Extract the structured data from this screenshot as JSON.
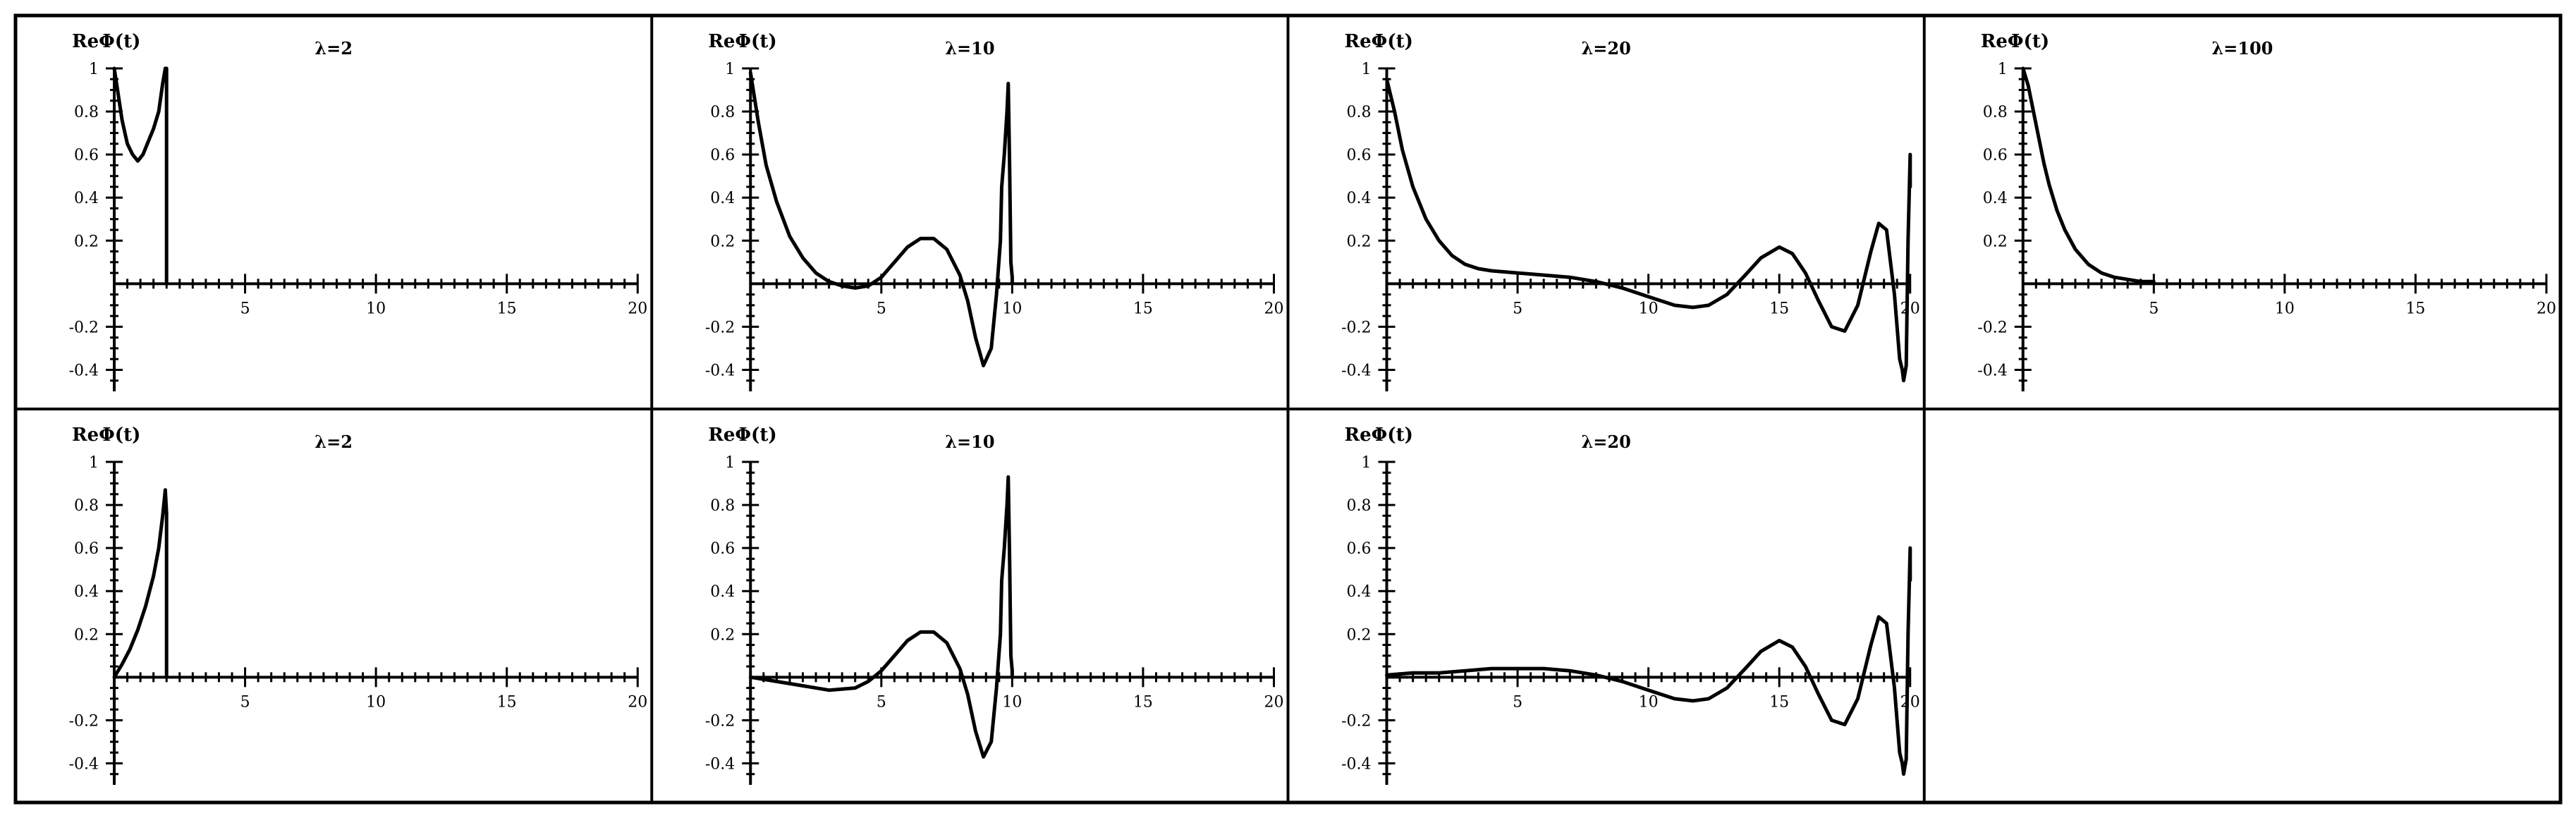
{
  "figure": {
    "grid_rows": 2,
    "grid_cols": 4,
    "line_color": "#000000",
    "background": "#ffffff"
  },
  "chart_data": [
    {
      "type": "line",
      "title": "λ=2",
      "ylabel": "ReΦ(t)",
      "xlim": [
        0,
        20
      ],
      "ylim": [
        -0.5,
        1
      ],
      "x_ticks": [
        5,
        10,
        15,
        20
      ],
      "x_tick_labels": [
        "5",
        "10",
        "15",
        "20"
      ],
      "y_ticks": [
        -0.4,
        -0.2,
        0.2,
        0.4,
        0.6,
        0.8,
        1
      ],
      "y_tick_labels": [
        "-0.4",
        "-0.2",
        "0.2",
        "0.4",
        "0.6",
        "0.8",
        "1"
      ],
      "grid": false,
      "series": [
        {
          "x": [
            0,
            0.15,
            0.3,
            0.5,
            0.7,
            0.9,
            1.1,
            1.3,
            1.5,
            1.7,
            1.85,
            1.95,
            2.0,
            2.0
          ],
          "y": [
            1,
            0.88,
            0.76,
            0.65,
            0.6,
            0.57,
            0.6,
            0.66,
            0.72,
            0.8,
            0.93,
            1.0,
            1.0,
            0
          ]
        }
      ]
    },
    {
      "type": "line",
      "title": "λ=10",
      "ylabel": "ReΦ(t)",
      "xlim": [
        0,
        20
      ],
      "ylim": [
        -0.5,
        1
      ],
      "x_ticks": [
        5,
        10,
        15,
        20
      ],
      "x_tick_labels": [
        "5",
        "10",
        "15",
        "20"
      ],
      "y_ticks": [
        -0.4,
        -0.2,
        0.2,
        0.4,
        0.6,
        0.8,
        1
      ],
      "y_tick_labels": [
        "-0.4",
        "-0.2",
        "0.2",
        "0.4",
        "0.6",
        "0.8",
        "1"
      ],
      "grid": false,
      "series": [
        {
          "x": [
            0,
            0.3,
            0.6,
            1.0,
            1.5,
            2.0,
            2.5,
            3.0,
            3.5,
            4.0,
            4.5,
            5.0,
            5.5,
            6.0,
            6.5,
            7.0,
            7.5,
            8.0,
            8.3,
            8.6,
            8.9,
            9.2,
            9.4,
            9.55,
            9.6,
            9.7,
            9.8,
            9.85,
            9.9,
            9.95,
            10.0,
            10.0
          ],
          "y": [
            0.98,
            0.75,
            0.55,
            0.38,
            0.22,
            0.12,
            0.05,
            0.01,
            -0.01,
            -0.02,
            -0.01,
            0.03,
            0.1,
            0.17,
            0.21,
            0.21,
            0.16,
            0.04,
            -0.08,
            -0.25,
            -0.38,
            -0.3,
            -0.05,
            0.2,
            0.45,
            0.6,
            0.8,
            0.93,
            0.55,
            0.1,
            0.03,
            0
          ]
        }
      ]
    },
    {
      "type": "line",
      "title": "λ=20",
      "ylabel": "ReΦ(t)",
      "xlim": [
        0,
        20
      ],
      "ylim": [
        -0.5,
        1
      ],
      "x_ticks": [
        5,
        10,
        15,
        20
      ],
      "x_tick_labels": [
        "5",
        "10",
        "15",
        "20"
      ],
      "y_ticks": [
        -0.4,
        -0.2,
        0.2,
        0.4,
        0.6,
        0.8,
        1
      ],
      "y_tick_labels": [
        "-0.4",
        "-0.2",
        "0.2",
        "0.4",
        "0.6",
        "0.8",
        "1"
      ],
      "grid": false,
      "series": [
        {
          "x": [
            0,
            0.3,
            0.6,
            1.0,
            1.5,
            2.0,
            2.5,
            3.0,
            3.5,
            4.0,
            5.0,
            6.0,
            7.0,
            8.0,
            9.0,
            10.0,
            11.0,
            11.7,
            12.3,
            13.0,
            13.7,
            14.3,
            15.0,
            15.5,
            16.0,
            16.5,
            17.0,
            17.5,
            18.0,
            18.5,
            18.8,
            19.1,
            19.4,
            19.6,
            19.7,
            19.75,
            19.85,
            19.92,
            20.0,
            20.0
          ],
          "y": [
            0.95,
            0.8,
            0.62,
            0.45,
            0.3,
            0.2,
            0.13,
            0.09,
            0.07,
            0.06,
            0.05,
            0.04,
            0.03,
            0.01,
            -0.02,
            -0.06,
            -0.1,
            -0.11,
            -0.1,
            -0.05,
            0.04,
            0.12,
            0.17,
            0.14,
            0.05,
            -0.08,
            -0.2,
            -0.22,
            -0.1,
            0.15,
            0.28,
            0.25,
            -0.05,
            -0.35,
            -0.4,
            -0.45,
            -0.38,
            0.2,
            0.6,
            0.45
          ]
        }
      ]
    },
    {
      "type": "line",
      "title": "λ=100",
      "ylabel": "ReΦ(t)",
      "xlim": [
        0,
        20
      ],
      "ylim": [
        -0.5,
        1
      ],
      "x_ticks": [
        5,
        10,
        15,
        20
      ],
      "x_tick_labels": [
        "5",
        "10",
        "15",
        "20"
      ],
      "y_ticks": [
        -0.4,
        -0.2,
        0.2,
        0.4,
        0.6,
        0.8,
        1
      ],
      "y_tick_labels": [
        "-0.4",
        "-0.2",
        "0.2",
        "0.4",
        "0.6",
        "0.8",
        "1"
      ],
      "grid": false,
      "series": [
        {
          "x": [
            0,
            0.2,
            0.4,
            0.6,
            0.8,
            1.0,
            1.3,
            1.6,
            2.0,
            2.5,
            3.0,
            3.5,
            4.0,
            4.5,
            5.0
          ],
          "y": [
            1,
            0.92,
            0.8,
            0.68,
            0.56,
            0.46,
            0.34,
            0.25,
            0.16,
            0.09,
            0.05,
            0.03,
            0.02,
            0.01,
            0.01
          ]
        }
      ]
    },
    {
      "type": "line",
      "title": "λ=2",
      "ylabel": "ReΦ(t)",
      "xlim": [
        0,
        20
      ],
      "ylim": [
        -0.5,
        1
      ],
      "x_ticks": [
        5,
        10,
        15,
        20
      ],
      "x_tick_labels": [
        "5",
        "10",
        "15",
        "20"
      ],
      "y_ticks": [
        -0.4,
        -0.2,
        0.2,
        0.4,
        0.6,
        0.8,
        1
      ],
      "y_tick_labels": [
        "-0.4",
        "-0.2",
        "0.2",
        "0.4",
        "0.6",
        "0.8",
        "1"
      ],
      "grid": false,
      "series": [
        {
          "x": [
            0,
            0.3,
            0.6,
            0.9,
            1.2,
            1.5,
            1.7,
            1.85,
            1.95,
            2.0,
            2.0
          ],
          "y": [
            0,
            0.06,
            0.13,
            0.22,
            0.33,
            0.47,
            0.6,
            0.75,
            0.87,
            0.76,
            0
          ]
        }
      ]
    },
    {
      "type": "line",
      "title": "λ=10",
      "ylabel": "ReΦ(t)",
      "xlim": [
        0,
        20
      ],
      "ylim": [
        -0.5,
        1
      ],
      "x_ticks": [
        5,
        10,
        15,
        20
      ],
      "x_tick_labels": [
        "5",
        "10",
        "15",
        "20"
      ],
      "y_ticks": [
        -0.4,
        -0.2,
        0.2,
        0.4,
        0.6,
        0.8,
        1
      ],
      "y_tick_labels": [
        "-0.4",
        "-0.2",
        "0.2",
        "0.4",
        "0.6",
        "0.8",
        "1"
      ],
      "grid": false,
      "series": [
        {
          "x": [
            0,
            1.0,
            2.0,
            3.0,
            4.0,
            4.5,
            5.0,
            5.5,
            6.0,
            6.5,
            7.0,
            7.5,
            8.0,
            8.3,
            8.6,
            8.9,
            9.2,
            9.4,
            9.55,
            9.6,
            9.7,
            9.8,
            9.85,
            9.9,
            9.95,
            10.0,
            10.0
          ],
          "y": [
            0,
            -0.02,
            -0.04,
            -0.06,
            -0.05,
            -0.02,
            0.03,
            0.1,
            0.17,
            0.21,
            0.21,
            0.16,
            0.04,
            -0.08,
            -0.25,
            -0.37,
            -0.3,
            -0.05,
            0.2,
            0.45,
            0.6,
            0.8,
            0.93,
            0.55,
            0.1,
            0.03,
            0
          ]
        }
      ]
    },
    {
      "type": "line",
      "title": "λ=20",
      "ylabel": "ReΦ(t)",
      "xlim": [
        0,
        20
      ],
      "ylim": [
        -0.5,
        1
      ],
      "x_ticks": [
        5,
        10,
        15,
        20
      ],
      "x_tick_labels": [
        "5",
        "10",
        "15",
        "20"
      ],
      "y_ticks": [
        -0.4,
        -0.2,
        0.2,
        0.4,
        0.6,
        0.8,
        1
      ],
      "y_tick_labels": [
        "-0.4",
        "-0.2",
        "0.2",
        "0.4",
        "0.6",
        "0.8",
        "1"
      ],
      "grid": false,
      "series": [
        {
          "x": [
            0,
            1.0,
            2.0,
            3.0,
            4.0,
            5.0,
            6.0,
            7.0,
            8.0,
            9.0,
            10.0,
            11.0,
            11.7,
            12.3,
            13.0,
            13.7,
            14.3,
            15.0,
            15.5,
            16.0,
            16.5,
            17.0,
            17.5,
            18.0,
            18.5,
            18.8,
            19.1,
            19.4,
            19.6,
            19.7,
            19.75,
            19.85,
            19.92,
            20.0,
            20.0
          ],
          "y": [
            0.01,
            0.02,
            0.02,
            0.03,
            0.04,
            0.04,
            0.04,
            0.03,
            0.01,
            -0.02,
            -0.06,
            -0.1,
            -0.11,
            -0.1,
            -0.05,
            0.04,
            0.12,
            0.17,
            0.14,
            0.05,
            -0.08,
            -0.2,
            -0.22,
            -0.1,
            0.15,
            0.28,
            0.25,
            -0.05,
            -0.35,
            -0.4,
            -0.45,
            -0.38,
            0.2,
            0.6,
            0.45
          ]
        }
      ]
    }
  ]
}
